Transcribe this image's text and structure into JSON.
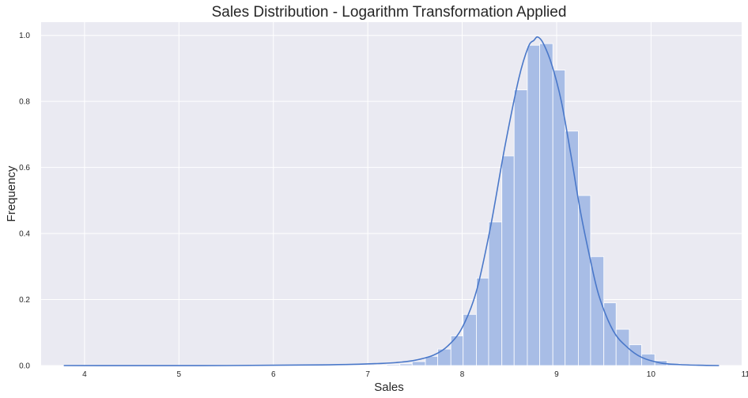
{
  "chart_data": {
    "type": "bar",
    "title": "Sales Distribution - Logarithm Transformation Applied",
    "xlabel": "Sales",
    "ylabel": "Frequency",
    "xlim": [
      3.54,
      10.96
    ],
    "ylim": [
      0,
      1.04
    ],
    "xticks": [
      4,
      5,
      6,
      7,
      8,
      9,
      10,
      11
    ],
    "yticks": [
      0.0,
      0.2,
      0.4,
      0.6,
      0.8,
      1.0
    ],
    "grid": true,
    "colors": {
      "background": "#eaeaf2",
      "bar": "#a8bde6",
      "bar_edge": "#ffffff",
      "line": "#4a78c9",
      "grid": "#ffffff"
    },
    "bins": [
      {
        "x0": 7.07,
        "x1": 7.2,
        "value": 0.001
      },
      {
        "x0": 7.2,
        "x1": 7.34,
        "value": 0.003
      },
      {
        "x0": 7.34,
        "x1": 7.47,
        "value": 0.005
      },
      {
        "x0": 7.47,
        "x1": 7.61,
        "value": 0.012
      },
      {
        "x0": 7.61,
        "x1": 7.74,
        "value": 0.028
      },
      {
        "x0": 7.74,
        "x1": 7.88,
        "value": 0.05
      },
      {
        "x0": 7.88,
        "x1": 8.01,
        "value": 0.09
      },
      {
        "x0": 8.01,
        "x1": 8.15,
        "value": 0.155
      },
      {
        "x0": 8.15,
        "x1": 8.28,
        "value": 0.265
      },
      {
        "x0": 8.28,
        "x1": 8.42,
        "value": 0.435
      },
      {
        "x0": 8.42,
        "x1": 8.55,
        "value": 0.635
      },
      {
        "x0": 8.55,
        "x1": 8.69,
        "value": 0.835
      },
      {
        "x0": 8.69,
        "x1": 8.82,
        "value": 0.97
      },
      {
        "x0": 8.82,
        "x1": 8.96,
        "value": 0.975
      },
      {
        "x0": 8.96,
        "x1": 9.09,
        "value": 0.895
      },
      {
        "x0": 9.09,
        "x1": 9.23,
        "value": 0.71
      },
      {
        "x0": 9.23,
        "x1": 9.36,
        "value": 0.515
      },
      {
        "x0": 9.36,
        "x1": 9.5,
        "value": 0.33
      },
      {
        "x0": 9.5,
        "x1": 9.63,
        "value": 0.19
      },
      {
        "x0": 9.63,
        "x1": 9.77,
        "value": 0.11
      },
      {
        "x0": 9.77,
        "x1": 9.9,
        "value": 0.063
      },
      {
        "x0": 9.9,
        "x1": 10.04,
        "value": 0.035
      },
      {
        "x0": 10.04,
        "x1": 10.17,
        "value": 0.015
      },
      {
        "x0": 10.17,
        "x1": 10.31,
        "value": 0.005
      },
      {
        "x0": 10.31,
        "x1": 10.44,
        "value": 0.002
      }
    ],
    "kde": {
      "x": [
        3.78,
        5.5,
        6.5,
        6.9,
        7.1,
        7.3,
        7.5,
        7.7,
        7.85,
        8.0,
        8.15,
        8.3,
        8.45,
        8.6,
        8.7,
        8.76,
        8.8,
        8.86,
        8.95,
        9.05,
        9.15,
        9.25,
        9.35,
        9.45,
        9.6,
        9.75,
        9.9,
        10.1,
        10.3,
        10.5,
        10.72
      ],
      "y": [
        0.0,
        0.0,
        0.002,
        0.004,
        0.006,
        0.009,
        0.016,
        0.032,
        0.06,
        0.115,
        0.225,
        0.42,
        0.66,
        0.87,
        0.965,
        0.985,
        0.995,
        0.975,
        0.91,
        0.8,
        0.64,
        0.47,
        0.33,
        0.21,
        0.105,
        0.055,
        0.025,
        0.008,
        0.003,
        0.001,
        0.0
      ]
    }
  }
}
